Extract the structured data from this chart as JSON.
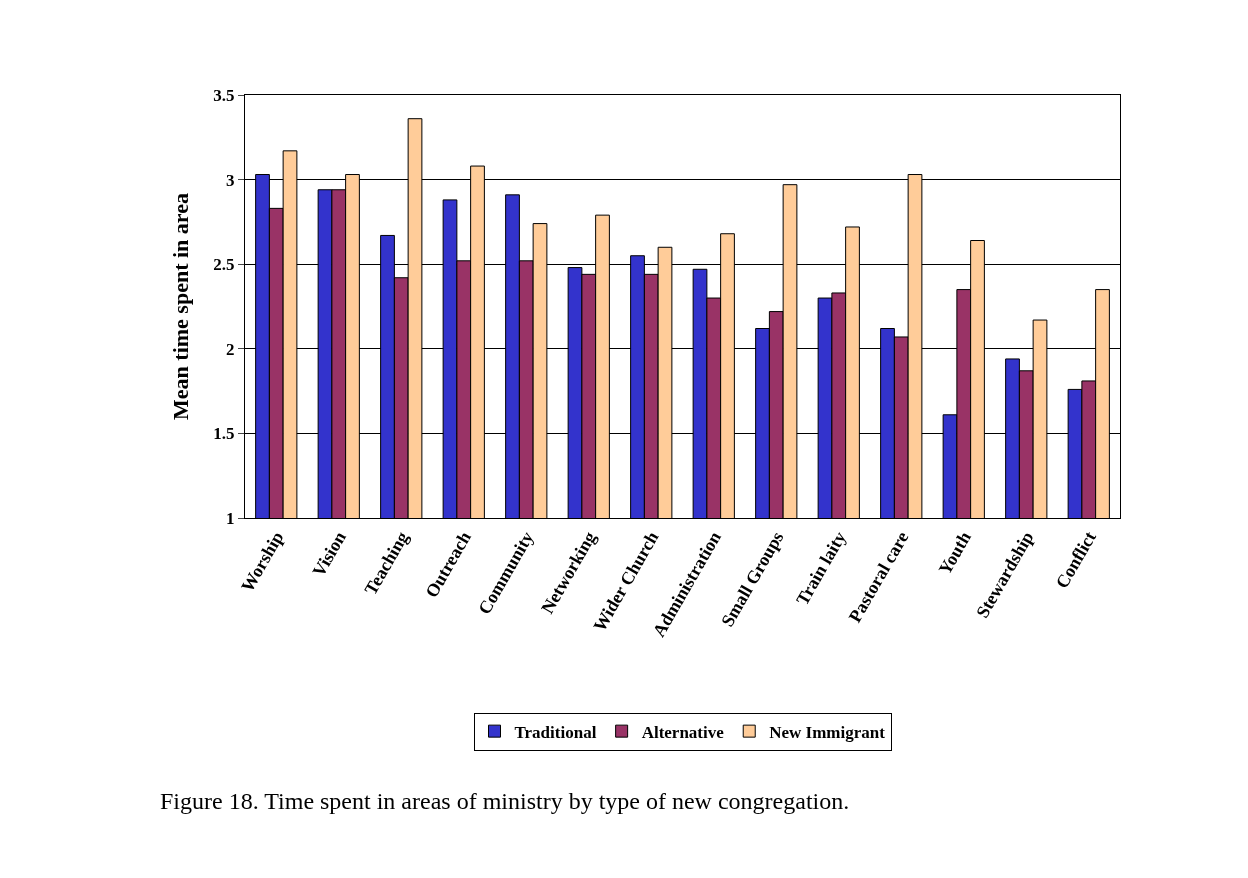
{
  "chart_data": {
    "type": "bar",
    "ylabel": "Mean time spent in area",
    "categories": [
      "Worship",
      "Vision",
      "Teaching",
      "Outreach",
      "Community",
      "Networking",
      "Wider Church",
      "Administration",
      "Small Groups",
      "Train laity",
      "Pastoral care",
      "Youth",
      "Stewardship",
      "Conflict"
    ],
    "series": [
      {
        "name": "Traditional",
        "color": "#3333cc",
        "values": [
          3.03,
          2.94,
          2.67,
          2.88,
          2.91,
          2.48,
          2.55,
          2.47,
          2.12,
          2.3,
          2.12,
          1.61,
          1.94,
          1.76
        ]
      },
      {
        "name": "Alternative",
        "color": "#993366",
        "values": [
          2.83,
          2.94,
          2.42,
          2.52,
          2.52,
          2.44,
          2.44,
          2.3,
          2.22,
          2.33,
          2.07,
          2.35,
          1.87,
          1.81
        ]
      },
      {
        "name": "New Immigrant",
        "color": "#ffcc99",
        "values": [
          3.17,
          3.03,
          3.36,
          3.08,
          2.74,
          2.79,
          2.6,
          2.68,
          2.97,
          2.72,
          3.03,
          2.64,
          2.17,
          2.35
        ]
      }
    ],
    "ylim": [
      1,
      3.5
    ],
    "yticks": [
      1,
      1.5,
      2,
      2.5,
      3,
      3.5
    ],
    "grid": "y",
    "legend": "bottom",
    "annotations": [
      "Figure 18. Time spent in areas of ministry by type of new congregation."
    ]
  }
}
